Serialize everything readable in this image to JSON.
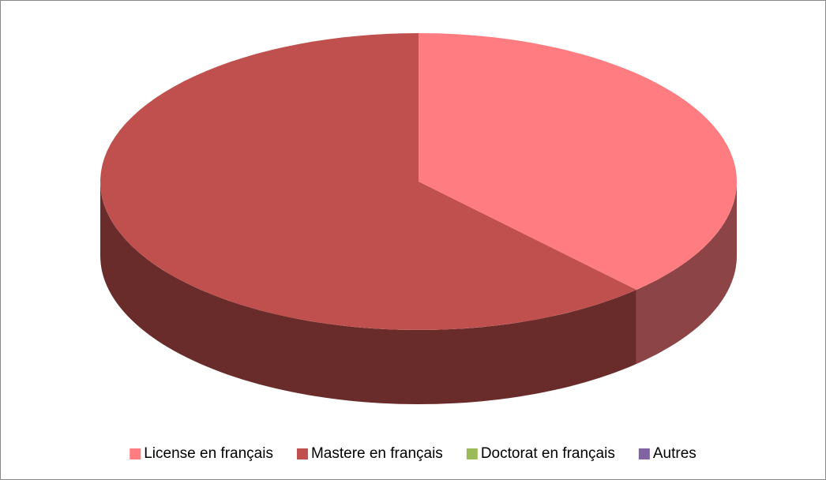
{
  "chart_data": {
    "type": "pie",
    "categories": [
      "License en français",
      "Mastere en français",
      "Doctorat en français",
      "Autres"
    ],
    "values": [
      38,
      62,
      0,
      0
    ],
    "colors": [
      "#ff7c80",
      "#c0504d",
      "#9bbb59",
      "#8064a2"
    ],
    "legend": "bottom"
  }
}
